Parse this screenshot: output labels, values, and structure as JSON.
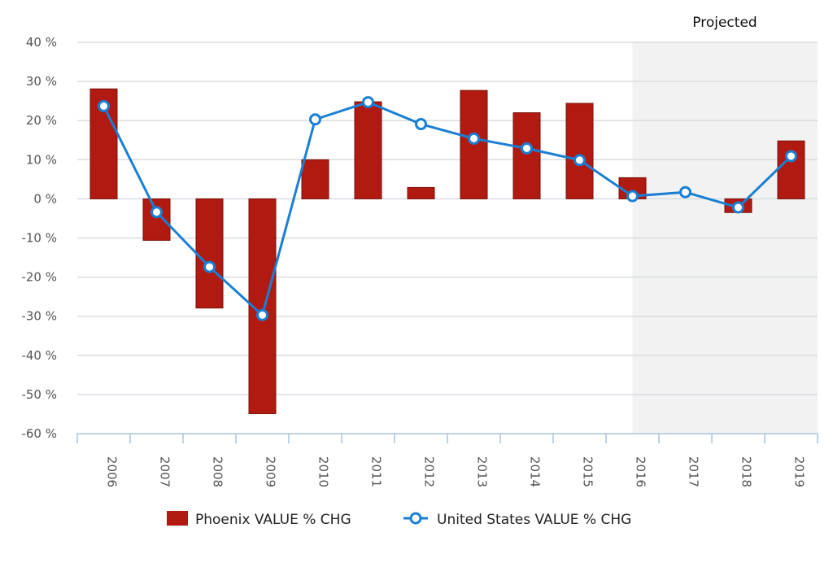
{
  "chart_data": {
    "type": "bar",
    "title": "",
    "xlabel": "",
    "ylabel": "",
    "categories": [
      "2006",
      "2007",
      "2008",
      "2009",
      "2010",
      "2011",
      "2012",
      "2013",
      "2014",
      "2015",
      "2016",
      "2017",
      "2018",
      "2019"
    ],
    "ylim": [
      -60,
      40
    ],
    "yticks": [
      40,
      30,
      20,
      10,
      0,
      -10,
      -20,
      -30,
      -40,
      -50,
      -60
    ],
    "ytick_labels": [
      "40 %",
      "30 %",
      "20 %",
      "10 %",
      "0 %",
      "-10 %",
      "-20 %",
      "-30 %",
      "-40 %",
      "-50 %",
      "-60 %"
    ],
    "grid": true,
    "legend_position": "bottom",
    "projected_band": {
      "label": "Projected",
      "from": "2016",
      "to": "2019",
      "color": "#f2f2f2"
    },
    "series": [
      {
        "name": "Phoenix VALUE % CHG",
        "type": "bar",
        "color": "#b01a10",
        "values": [
          28.1,
          -10.6,
          -27.9,
          -54.9,
          10.0,
          24.8,
          2.9,
          27.7,
          22.0,
          24.4,
          5.4,
          0,
          -3.5,
          14.8
        ]
      },
      {
        "name": "United States VALUE % CHG",
        "type": "line",
        "color": "#1a7fd4",
        "values": [
          23.7,
          -3.4,
          -17.4,
          -29.7,
          20.3,
          24.7,
          19.1,
          15.4,
          12.9,
          9.9,
          0.7,
          1.7,
          -2.2,
          10.9
        ]
      }
    ]
  }
}
